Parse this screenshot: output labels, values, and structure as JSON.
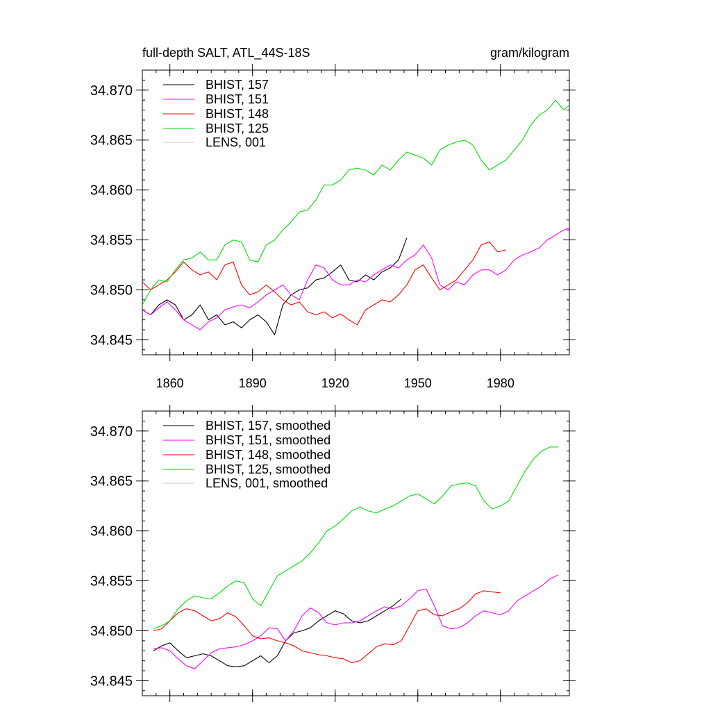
{
  "figure": {
    "title_left": "full-depth SALT, ATL_44S-18S",
    "title_right": "gram/kilogram"
  },
  "colors": {
    "BHIST_157": "#000000",
    "BHIST_151": "#ff00ff",
    "BHIST_148": "#ff0000",
    "BHIST_125": "#00dd00",
    "LENS_001": "#c8c8c8"
  },
  "chart_data": [
    {
      "type": "line",
      "title": "full-depth SALT, ATL_44S-18S",
      "units": "gram/kilogram",
      "xlim": [
        1850,
        2005
      ],
      "ylim": [
        34.8435,
        34.872
      ],
      "x_tick_labels": [
        "1860",
        "1890",
        "1920",
        "1950",
        "1980"
      ],
      "x_ticks": [
        1860,
        1890,
        1920,
        1950,
        1980
      ],
      "y_tick_labels": [
        "34.845",
        "34.850",
        "34.855",
        "34.860",
        "34.865",
        "34.870"
      ],
      "y_ticks": [
        34.845,
        34.85,
        34.855,
        34.86,
        34.865,
        34.87
      ],
      "legend": [
        "BHIST, 157",
        "BHIST, 151",
        "BHIST, 148",
        "BHIST, 125",
        "LENS, 001"
      ],
      "series": [
        {
          "name": "BHIST, 157",
          "color": "#000000",
          "x": [
            1850,
            1853,
            1856,
            1859,
            1862,
            1865,
            1868,
            1871,
            1874,
            1877,
            1880,
            1883,
            1886,
            1889,
            1892,
            1895,
            1898,
            1901,
            1904,
            1907,
            1910,
            1913,
            1916,
            1919,
            1922,
            1925,
            1928,
            1931,
            1934,
            1937,
            1940,
            1943,
            1946
          ],
          "y": [
            34.848,
            34.8475,
            34.8485,
            34.849,
            34.8485,
            34.847,
            34.8475,
            34.8485,
            34.847,
            34.8475,
            34.8465,
            34.8468,
            34.8462,
            34.847,
            34.8475,
            34.8468,
            34.8455,
            34.8485,
            34.8495,
            34.85,
            34.8502,
            34.851,
            34.8512,
            34.8518,
            34.8525,
            34.851,
            34.8508,
            34.8515,
            34.851,
            34.8518,
            34.8522,
            34.853,
            34.8552
          ]
        },
        {
          "name": "BHIST, 151",
          "color": "#ff00ff",
          "x": [
            1850,
            1853,
            1856,
            1859,
            1862,
            1865,
            1868,
            1871,
            1874,
            1877,
            1880,
            1883,
            1886,
            1889,
            1892,
            1895,
            1898,
            1901,
            1904,
            1907,
            1910,
            1913,
            1916,
            1919,
            1922,
            1925,
            1928,
            1931,
            1934,
            1937,
            1940,
            1943,
            1946,
            1949,
            1952,
            1955,
            1958,
            1961,
            1964,
            1967,
            1970,
            1973,
            1976,
            1979,
            1982,
            1985,
            1988,
            1991,
            1994,
            1997,
            2000,
            2003,
            2005
          ],
          "y": [
            34.848,
            34.8475,
            34.8482,
            34.8488,
            34.848,
            34.847,
            34.8465,
            34.846,
            34.8468,
            34.8472,
            34.848,
            34.8483,
            34.8485,
            34.8482,
            34.8488,
            34.8495,
            34.85,
            34.8505,
            34.8495,
            34.849,
            34.851,
            34.8525,
            34.8522,
            34.851,
            34.8505,
            34.8505,
            34.851,
            34.8508,
            34.8515,
            34.852,
            34.8525,
            34.8522,
            34.853,
            34.8535,
            34.8545,
            34.8532,
            34.8505,
            34.85,
            34.8508,
            34.8505,
            34.8515,
            34.852,
            34.852,
            34.8515,
            34.852,
            34.853,
            34.8535,
            34.8538,
            34.8542,
            34.855,
            34.8555,
            34.856,
            34.8562
          ]
        },
        {
          "name": "BHIST, 148",
          "color": "#ff0000",
          "x": [
            1850,
            1853,
            1856,
            1859,
            1862,
            1865,
            1868,
            1871,
            1874,
            1877,
            1880,
            1883,
            1886,
            1889,
            1892,
            1895,
            1898,
            1901,
            1904,
            1907,
            1910,
            1913,
            1916,
            1919,
            1922,
            1925,
            1928,
            1931,
            1934,
            1937,
            1940,
            1943,
            1946,
            1949,
            1952,
            1955,
            1958,
            1961,
            1964,
            1967,
            1970,
            1973,
            1976,
            1979,
            1982
          ],
          "y": [
            34.8508,
            34.85,
            34.8505,
            34.851,
            34.8518,
            34.8528,
            34.852,
            34.8515,
            34.8518,
            34.851,
            34.8525,
            34.8528,
            34.8505,
            34.8495,
            34.8498,
            34.8505,
            34.8498,
            34.849,
            34.8485,
            34.8488,
            34.8478,
            34.8475,
            34.8478,
            34.8472,
            34.8476,
            34.847,
            34.8465,
            34.848,
            34.8485,
            34.849,
            34.8488,
            34.8495,
            34.8505,
            34.852,
            34.8525,
            34.8512,
            34.85,
            34.8505,
            34.851,
            34.852,
            34.853,
            34.8545,
            34.8548,
            34.8538,
            34.854
          ]
        },
        {
          "name": "BHIST, 125",
          "color": "#00dd00",
          "x": [
            1850,
            1853,
            1856,
            1859,
            1862,
            1865,
            1868,
            1871,
            1874,
            1877,
            1880,
            1883,
            1886,
            1889,
            1892,
            1895,
            1898,
            1901,
            1904,
            1907,
            1910,
            1913,
            1916,
            1919,
            1922,
            1925,
            1928,
            1931,
            1934,
            1937,
            1940,
            1943,
            1946,
            1949,
            1952,
            1955,
            1958,
            1961,
            1964,
            1967,
            1970,
            1973,
            1976,
            1979,
            1982,
            1985,
            1988,
            1991,
            1994,
            1997,
            2000,
            2003,
            2005
          ],
          "y": [
            34.8485,
            34.85,
            34.851,
            34.8508,
            34.852,
            34.853,
            34.8532,
            34.8538,
            34.853,
            34.853,
            34.8545,
            34.855,
            34.8548,
            34.853,
            34.8528,
            34.8545,
            34.855,
            34.856,
            34.8568,
            34.8578,
            34.858,
            34.859,
            34.8605,
            34.8605,
            34.861,
            34.862,
            34.8622,
            34.862,
            34.8615,
            34.8625,
            34.862,
            34.863,
            34.8638,
            34.8635,
            34.8632,
            34.8625,
            34.864,
            34.8645,
            34.8648,
            34.865,
            34.8645,
            34.863,
            34.862,
            34.8625,
            34.863,
            34.864,
            34.865,
            34.8665,
            34.8675,
            34.868,
            34.869,
            34.868,
            34.8685
          ]
        },
        {
          "name": "LENS, 001",
          "color": "#c8c8c8",
          "x": [],
          "y": []
        }
      ]
    },
    {
      "type": "line",
      "xlim": [
        1850,
        2005
      ],
      "ylim": [
        34.8435,
        34.872
      ],
      "x_ticks": [
        1860,
        1890,
        1920,
        1950,
        1980
      ],
      "y_tick_labels": [
        "34.845",
        "34.850",
        "34.855",
        "34.860",
        "34.865",
        "34.870"
      ],
      "y_ticks": [
        34.845,
        34.85,
        34.855,
        34.86,
        34.865,
        34.87
      ],
      "legend": [
        "BHIST, 157, smoothed",
        "BHIST, 151, smoothed",
        "BHIST, 148, smoothed",
        "BHIST, 125, smoothed",
        "LENS, 001, smoothed"
      ],
      "series": [
        {
          "name": "BHIST, 157, smoothed",
          "color": "#000000",
          "x": [
            1854,
            1857,
            1860,
            1863,
            1866,
            1869,
            1872,
            1875,
            1878,
            1881,
            1884,
            1887,
            1890,
            1893,
            1896,
            1899,
            1902,
            1905,
            1908,
            1911,
            1914,
            1917,
            1920,
            1923,
            1926,
            1929,
            1932,
            1935,
            1938,
            1941,
            1944
          ],
          "y": [
            34.848,
            34.8485,
            34.8488,
            34.848,
            34.8473,
            34.8475,
            34.8477,
            34.8475,
            34.847,
            34.8465,
            34.8464,
            34.8465,
            34.847,
            34.8475,
            34.8468,
            34.8475,
            34.849,
            34.8498,
            34.85,
            34.8503,
            34.851,
            34.8515,
            34.852,
            34.8517,
            34.851,
            34.8508,
            34.851,
            34.8515,
            34.852,
            34.8525,
            34.8532
          ]
        },
        {
          "name": "BHIST, 151, smoothed",
          "color": "#ff00ff",
          "x": [
            1854,
            1857,
            1860,
            1863,
            1866,
            1869,
            1872,
            1875,
            1878,
            1881,
            1884,
            1887,
            1890,
            1893,
            1896,
            1899,
            1902,
            1905,
            1908,
            1911,
            1914,
            1917,
            1920,
            1923,
            1926,
            1929,
            1932,
            1935,
            1938,
            1941,
            1944,
            1947,
            1950,
            1953,
            1956,
            1959,
            1962,
            1965,
            1968,
            1971,
            1974,
            1977,
            1980,
            1983,
            1986,
            1989,
            1992,
            1995,
            1998,
            2001
          ],
          "y": [
            34.8482,
            34.8483,
            34.848,
            34.8472,
            34.8465,
            34.8462,
            34.847,
            34.8478,
            34.8482,
            34.8483,
            34.8484,
            34.8486,
            34.849,
            34.8495,
            34.8503,
            34.8502,
            34.849,
            34.85,
            34.8515,
            34.8523,
            34.8518,
            34.8508,
            34.8506,
            34.8508,
            34.8508,
            34.851,
            34.8515,
            34.852,
            34.8524,
            34.8522,
            34.8525,
            34.8532,
            34.854,
            34.8542,
            34.8525,
            34.8505,
            34.8502,
            34.8503,
            34.8508,
            34.8515,
            34.852,
            34.8518,
            34.8516,
            34.852,
            34.853,
            34.8535,
            34.854,
            34.8545,
            34.8552,
            34.8556
          ]
        },
        {
          "name": "BHIST, 148, smoothed",
          "color": "#ff0000",
          "x": [
            1854,
            1857,
            1860,
            1863,
            1866,
            1869,
            1872,
            1875,
            1878,
            1881,
            1884,
            1887,
            1890,
            1893,
            1896,
            1899,
            1902,
            1905,
            1908,
            1911,
            1914,
            1917,
            1920,
            1923,
            1926,
            1929,
            1932,
            1935,
            1938,
            1941,
            1944,
            1947,
            1950,
            1953,
            1956,
            1959,
            1962,
            1965,
            1968,
            1971,
            1974,
            1977,
            1980
          ],
          "y": [
            34.85,
            34.8502,
            34.851,
            34.8518,
            34.8522,
            34.852,
            34.8515,
            34.851,
            34.8512,
            34.8518,
            34.8514,
            34.8505,
            34.8495,
            34.8492,
            34.8493,
            34.849,
            34.8488,
            34.8485,
            34.848,
            34.8478,
            34.8476,
            34.8475,
            34.8473,
            34.8472,
            34.8468,
            34.847,
            34.8477,
            34.8484,
            34.8487,
            34.8486,
            34.849,
            34.8505,
            34.852,
            34.8522,
            34.8516,
            34.8515,
            34.8519,
            34.8522,
            34.8528,
            34.8537,
            34.854,
            34.8539,
            34.8538
          ]
        },
        {
          "name": "BHIST, 125, smoothed",
          "color": "#00dd00",
          "x": [
            1854,
            1857,
            1860,
            1863,
            1866,
            1869,
            1872,
            1875,
            1878,
            1881,
            1884,
            1887,
            1890,
            1893,
            1896,
            1899,
            1902,
            1905,
            1908,
            1911,
            1914,
            1917,
            1920,
            1923,
            1926,
            1929,
            1932,
            1935,
            1938,
            1941,
            1944,
            1947,
            1950,
            1953,
            1956,
            1959,
            1962,
            1965,
            1968,
            1971,
            1974,
            1977,
            1980,
            1983,
            1986,
            1989,
            1992,
            1995,
            1998,
            2001
          ],
          "y": [
            34.8502,
            34.8505,
            34.851,
            34.8522,
            34.853,
            34.8535,
            34.8533,
            34.8532,
            34.8538,
            34.8545,
            34.855,
            34.8548,
            34.8532,
            34.8525,
            34.854,
            34.8555,
            34.856,
            34.8565,
            34.857,
            34.8578,
            34.8588,
            34.86,
            34.8605,
            34.8612,
            34.862,
            34.8624,
            34.862,
            34.8618,
            34.8622,
            34.8625,
            34.863,
            34.8635,
            34.8637,
            34.8632,
            34.8627,
            34.8635,
            34.8645,
            34.8647,
            34.8648,
            34.8645,
            34.863,
            34.8622,
            34.8625,
            34.863,
            34.8645,
            34.866,
            34.8672,
            34.868,
            34.8684,
            34.8684
          ]
        },
        {
          "name": "LENS, 001, smoothed",
          "color": "#c8c8c8",
          "x": [],
          "y": []
        }
      ]
    }
  ]
}
